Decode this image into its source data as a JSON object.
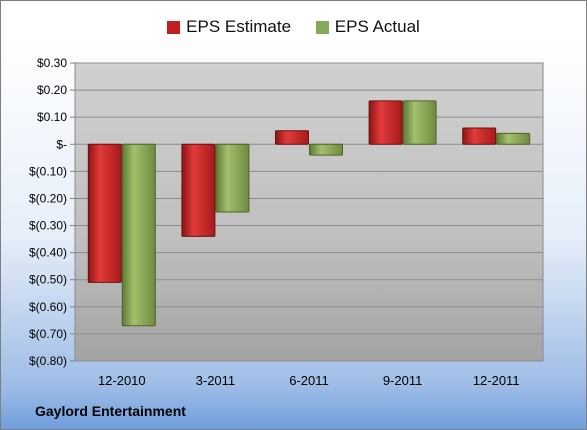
{
  "chart_data": {
    "type": "bar",
    "categories": [
      "12-2010",
      "3-2011",
      "6-2011",
      "9-2011",
      "12-2011"
    ],
    "series": [
      {
        "name": "EPS Estimate",
        "values": [
          -0.51,
          -0.34,
          0.05,
          0.16,
          0.06
        ],
        "color": "#c0201f"
      },
      {
        "name": "EPS Actual",
        "values": [
          -0.67,
          -0.25,
          -0.04,
          0.16,
          0.04
        ],
        "color": "#8aa85a"
      }
    ],
    "ylim": [
      -0.8,
      0.3
    ],
    "yticks": [
      0.3,
      0.2,
      0.1,
      0.0,
      -0.1,
      -0.2,
      -0.3,
      -0.4,
      -0.5,
      -0.6,
      -0.7,
      -0.8
    ],
    "ytick_labels": [
      "$0.30",
      "$0.20",
      "$0.10",
      "$-",
      "$(0.10)",
      "$(0.20)",
      "$(0.30)",
      "$(0.40)",
      "$(0.50)",
      "$(0.60)",
      "$(0.70)",
      "$(0.80)"
    ],
    "grid": true,
    "legend_position": "top-center"
  },
  "footer": {
    "company": "Gaylord Entertainment"
  }
}
